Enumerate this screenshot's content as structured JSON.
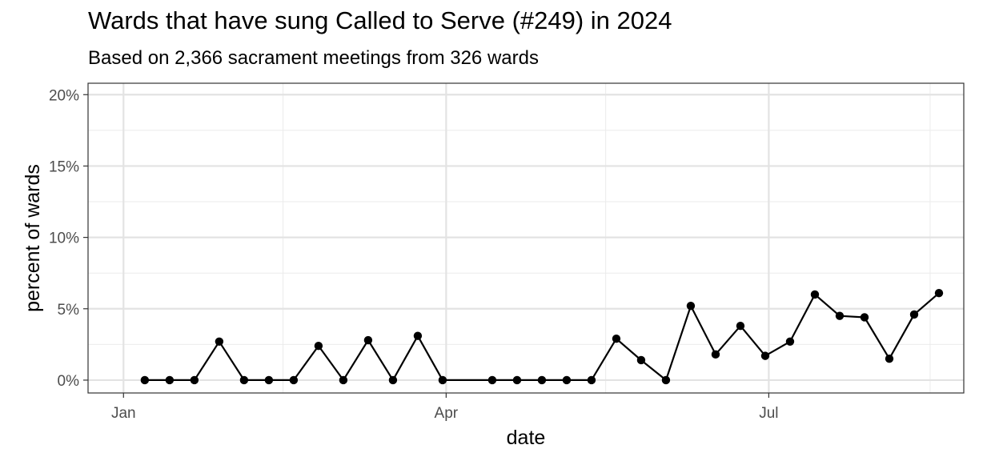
{
  "chart_data": {
    "type": "line",
    "title": "Wards that have sung Called to Serve (#249) in 2024",
    "subtitle": "Based on 2,366 sacrament meetings from 326 wards",
    "xlabel": "date",
    "ylabel": "percent of wards",
    "x_ticks": [
      {
        "label": "Jan",
        "date": "2024-01-01"
      },
      {
        "label": "Apr",
        "date": "2024-04-01"
      },
      {
        "label": "Jul",
        "date": "2024-07-01"
      }
    ],
    "y_ticks": [
      0,
      5,
      10,
      15,
      20
    ],
    "y_tick_labels": [
      "0%",
      "5%",
      "10%",
      "15%",
      "20%"
    ],
    "xlim": [
      "2023-12-22",
      "2024-08-25"
    ],
    "ylim": [
      -0.9,
      20.8
    ],
    "grid": true,
    "series": [
      {
        "color": "#000000",
        "points": [
          {
            "date": "2024-01-07",
            "value": 0.0
          },
          {
            "date": "2024-01-14",
            "value": 0.0
          },
          {
            "date": "2024-01-21",
            "value": 0.0
          },
          {
            "date": "2024-01-28",
            "value": 2.7
          },
          {
            "date": "2024-02-04",
            "value": 0.0
          },
          {
            "date": "2024-02-11",
            "value": 0.0
          },
          {
            "date": "2024-02-18",
            "value": 0.0
          },
          {
            "date": "2024-02-25",
            "value": 2.4
          },
          {
            "date": "2024-03-03",
            "value": 0.0
          },
          {
            "date": "2024-03-10",
            "value": 2.8
          },
          {
            "date": "2024-03-17",
            "value": 0.0
          },
          {
            "date": "2024-03-24",
            "value": 3.1
          },
          {
            "date": "2024-03-31",
            "value": 0.0
          },
          {
            "date": "2024-04-14",
            "value": 0.0
          },
          {
            "date": "2024-04-21",
            "value": 0.0
          },
          {
            "date": "2024-04-28",
            "value": 0.0
          },
          {
            "date": "2024-05-05",
            "value": 0.0
          },
          {
            "date": "2024-05-12",
            "value": 0.0
          },
          {
            "date": "2024-05-19",
            "value": 2.9
          },
          {
            "date": "2024-05-26",
            "value": 1.4
          },
          {
            "date": "2024-06-02",
            "value": 0.0
          },
          {
            "date": "2024-06-09",
            "value": 5.2
          },
          {
            "date": "2024-06-16",
            "value": 1.8
          },
          {
            "date": "2024-06-23",
            "value": 3.8
          },
          {
            "date": "2024-06-30",
            "value": 1.7
          },
          {
            "date": "2024-07-07",
            "value": 2.7
          },
          {
            "date": "2024-07-14",
            "value": 6.0
          },
          {
            "date": "2024-07-21",
            "value": 4.5
          },
          {
            "date": "2024-07-28",
            "value": 4.4
          },
          {
            "date": "2024-08-04",
            "value": 1.5
          },
          {
            "date": "2024-08-11",
            "value": 4.6
          },
          {
            "date": "2024-08-18",
            "value": 6.1
          }
        ]
      }
    ]
  }
}
